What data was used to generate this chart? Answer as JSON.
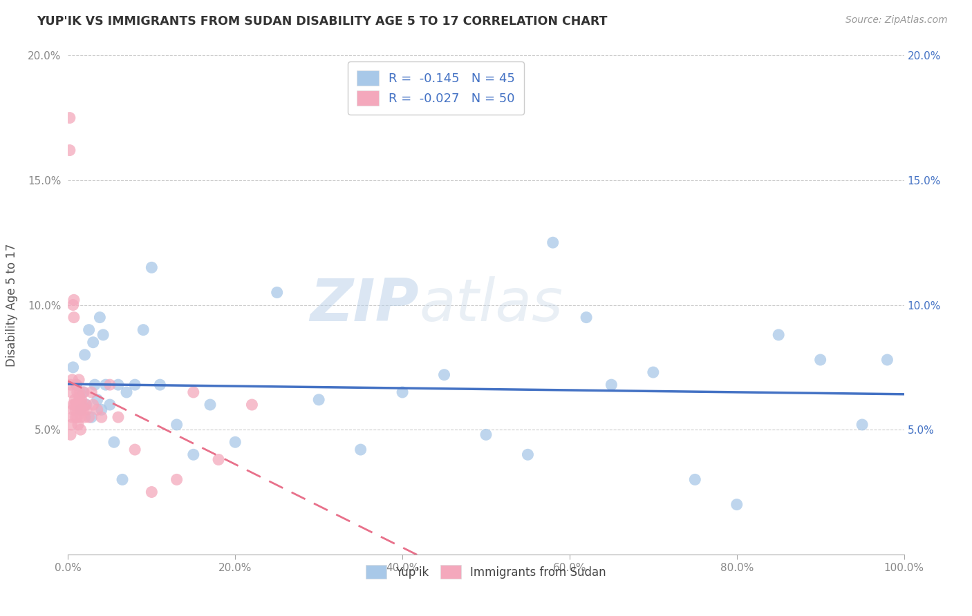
{
  "title": "YUP'IK VS IMMIGRANTS FROM SUDAN DISABILITY AGE 5 TO 17 CORRELATION CHART",
  "source": "Source: ZipAtlas.com",
  "ylabel": "Disability Age 5 to 17",
  "xlim": [
    0,
    1.0
  ],
  "ylim": [
    0,
    0.2
  ],
  "xticks": [
    0.0,
    0.2,
    0.4,
    0.6,
    0.8,
    1.0
  ],
  "xticklabels": [
    "0.0%",
    "20.0%",
    "40.0%",
    "60.0%",
    "80.0%",
    "100.0%"
  ],
  "yticks": [
    0.0,
    0.05,
    0.1,
    0.15,
    0.2
  ],
  "yticklabels_left": [
    "",
    "5.0%",
    "10.0%",
    "15.0%",
    "20.0%"
  ],
  "yticklabels_right": [
    "",
    "5.0%",
    "10.0%",
    "15.0%",
    "20.0%"
  ],
  "legend_labels": [
    "Yup'ik",
    "Immigrants from Sudan"
  ],
  "blue_color": "#a8c8e8",
  "pink_color": "#f4a8bc",
  "blue_line_color": "#4472c4",
  "pink_line_color": "#e8708a",
  "grid_color": "#cccccc",
  "background_color": "#ffffff",
  "watermark_zip": "ZIP",
  "watermark_atlas": "atlas",
  "R_blue": -0.145,
  "N_blue": 45,
  "R_pink": -0.027,
  "N_pink": 50,
  "blue_scatter_x": [
    0.006,
    0.01,
    0.015,
    0.018,
    0.02,
    0.022,
    0.025,
    0.028,
    0.03,
    0.032,
    0.035,
    0.038,
    0.04,
    0.042,
    0.045,
    0.05,
    0.055,
    0.06,
    0.065,
    0.07,
    0.08,
    0.09,
    0.1,
    0.11,
    0.13,
    0.15,
    0.17,
    0.2,
    0.25,
    0.3,
    0.35,
    0.4,
    0.45,
    0.5,
    0.55,
    0.58,
    0.62,
    0.65,
    0.7,
    0.75,
    0.8,
    0.85,
    0.9,
    0.95,
    0.98
  ],
  "blue_scatter_y": [
    0.075,
    0.068,
    0.058,
    0.065,
    0.08,
    0.06,
    0.09,
    0.055,
    0.085,
    0.068,
    0.062,
    0.095,
    0.058,
    0.088,
    0.068,
    0.06,
    0.045,
    0.068,
    0.03,
    0.065,
    0.068,
    0.09,
    0.115,
    0.068,
    0.052,
    0.04,
    0.06,
    0.045,
    0.105,
    0.062,
    0.042,
    0.065,
    0.072,
    0.048,
    0.04,
    0.125,
    0.095,
    0.068,
    0.073,
    0.03,
    0.02,
    0.088,
    0.078,
    0.052,
    0.078
  ],
  "pink_scatter_x": [
    0.002,
    0.002,
    0.003,
    0.003,
    0.004,
    0.004,
    0.005,
    0.005,
    0.006,
    0.006,
    0.006,
    0.007,
    0.007,
    0.008,
    0.008,
    0.009,
    0.009,
    0.01,
    0.01,
    0.011,
    0.011,
    0.012,
    0.012,
    0.013,
    0.013,
    0.014,
    0.014,
    0.015,
    0.015,
    0.016,
    0.016,
    0.017,
    0.018,
    0.019,
    0.02,
    0.021,
    0.022,
    0.025,
    0.028,
    0.03,
    0.035,
    0.04,
    0.05,
    0.06,
    0.08,
    0.1,
    0.13,
    0.15,
    0.18,
    0.22
  ],
  "pink_scatter_y": [
    0.175,
    0.162,
    0.068,
    0.048,
    0.065,
    0.052,
    0.07,
    0.055,
    0.06,
    0.058,
    0.1,
    0.102,
    0.095,
    0.06,
    0.062,
    0.058,
    0.055,
    0.068,
    0.06,
    0.055,
    0.065,
    0.058,
    0.052,
    0.062,
    0.07,
    0.065,
    0.063,
    0.055,
    0.05,
    0.058,
    0.062,
    0.06,
    0.058,
    0.065,
    0.055,
    0.06,
    0.058,
    0.055,
    0.065,
    0.06,
    0.058,
    0.055,
    0.068,
    0.055,
    0.042,
    0.025,
    0.03,
    0.065,
    0.038,
    0.06
  ]
}
